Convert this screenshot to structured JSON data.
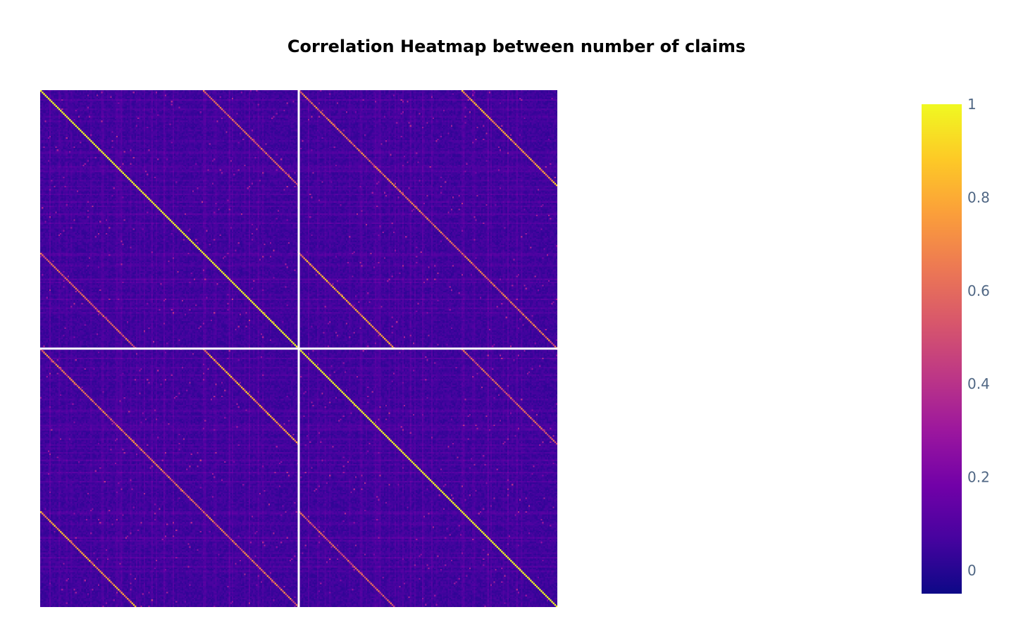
{
  "chart_data": {
    "type": "heatmap",
    "title": "Correlation Heatmap between number of claims",
    "xlabel": "",
    "ylabel": "",
    "zmin": -0.05,
    "zmax": 1,
    "colorscale": "plasma",
    "colorscale_stops": [
      "#0d0887",
      "#46039f",
      "#7201a8",
      "#9c179e",
      "#bd3786",
      "#d8576b",
      "#ed7953",
      "#fb9f3a",
      "#fdca26",
      "#f0f921"
    ],
    "colorbar": {
      "tickvals": [
        1,
        0.8,
        0.6,
        0.4,
        0.2,
        0
      ],
      "ticktext": [
        "1",
        "0.8",
        "0.6",
        "0.4",
        "0.2",
        "0"
      ]
    },
    "structure": {
      "blocks": 2,
      "cells_per_block": 170,
      "main_diagonal_value": 1,
      "off_diagonal_background": 0.05,
      "secondary_diagonals": [
        {
          "label": "block offset 0, lag 107",
          "value": 0.55
        },
        {
          "label": "block offset 1, lag 0",
          "value": 0.6
        },
        {
          "label": "block offset 1, lag 107",
          "value": 0.75
        }
      ],
      "block_separator_color": "#ffffff"
    }
  }
}
